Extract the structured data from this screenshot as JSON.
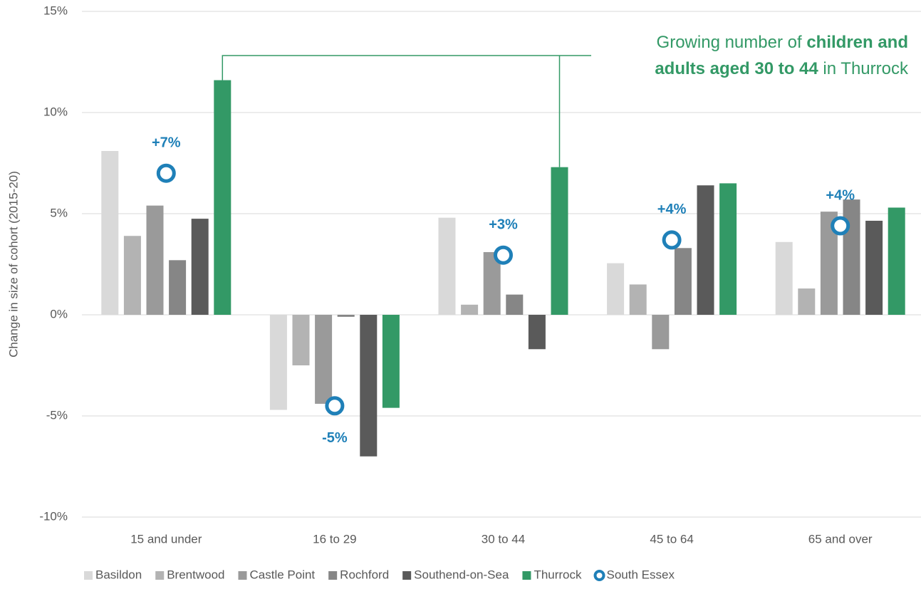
{
  "chart_data": {
    "type": "bar",
    "y_label": "Change in size of cohort (2015-20)",
    "categories": [
      "15 and under",
      "16 to 29",
      "30 to 44",
      "45 to 64",
      "65 and over"
    ],
    "series": [
      {
        "name": "Basildon",
        "color": "#d9d9d9",
        "values": [
          8.1,
          -4.7,
          4.8,
          2.55,
          3.6
        ]
      },
      {
        "name": "Brentwood",
        "color": "#b3b3b3",
        "values": [
          3.9,
          -2.5,
          0.5,
          1.5,
          1.3
        ]
      },
      {
        "name": "Castle Point",
        "color": "#9a9a9a",
        "values": [
          5.4,
          -4.4,
          3.1,
          -1.7,
          5.1
        ]
      },
      {
        "name": "Rochford",
        "color": "#868686",
        "values": [
          2.7,
          -0.1,
          1.0,
          3.3,
          5.7
        ]
      },
      {
        "name": "Southend-on-Sea",
        "color": "#5a5a5a",
        "values": [
          4.75,
          -7.0,
          -1.7,
          6.4,
          4.65
        ]
      },
      {
        "name": "Thurrock",
        "color": "#339966",
        "values": [
          11.6,
          -4.6,
          7.3,
          6.5,
          5.3
        ]
      },
      {
        "name": "South Essex",
        "color": "#1f80b8",
        "marker": "circle",
        "values": [
          7.0,
          -4.5,
          2.95,
          3.7,
          4.4
        ],
        "value_labels": [
          "+7%",
          "-5%",
          "+3%",
          "+4%",
          "+4%"
        ]
      }
    ],
    "ylim": [
      -10,
      15
    ],
    "yticks": [
      {
        "value": -10,
        "label": "-10%"
      },
      {
        "value": -5,
        "label": "-5%"
      },
      {
        "value": 0,
        "label": "0%"
      },
      {
        "value": 5,
        "label": "5%"
      },
      {
        "value": 10,
        "label": "10%"
      },
      {
        "value": 15,
        "label": "15%"
      }
    ],
    "grid": true,
    "legend": "bottom",
    "annotation": {
      "color": "#339966",
      "lines": [
        [
          {
            "text": "Growing number of "
          },
          {
            "text": "children and",
            "bold": true
          }
        ],
        [
          {
            "text": "adults aged 30 to 44",
            "bold": true
          },
          {
            "text": " in Thurrock"
          }
        ]
      ]
    }
  }
}
